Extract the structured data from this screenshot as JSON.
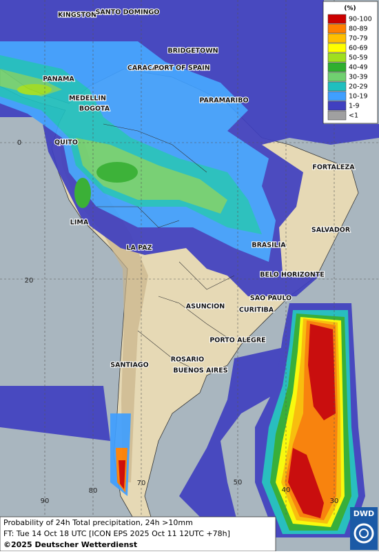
{
  "map": {
    "cities": [
      "KINGSTON",
      "SANTO DOMINGO",
      "BRIDGETOWN",
      "CARACAS",
      "PORT OF SPAIN",
      "PANAMA",
      "MEDELLIN",
      "BOGOTA",
      "PARAMARIBO",
      "QUITO",
      "FORTALEZA",
      "LIMA",
      "SALVADOR",
      "LA PAZ",
      "BRASILIA",
      "BELO HORIZONTE",
      "SAO PAULO",
      "ASUNCION",
      "CURITIBA",
      "PORTO ALEGRE",
      "ROSARIO",
      "SANTIAGO",
      "BUENOS AIRES"
    ],
    "latitude_labels": [
      "0",
      "20"
    ],
    "longitude_labels": [
      "90",
      "80",
      "70",
      "50",
      "40",
      "30"
    ]
  },
  "legend": {
    "unit": "(%)",
    "items": [
      {
        "label": "90-100",
        "color": "#cc0000"
      },
      {
        "label": "80-89",
        "color": "#ff7f00"
      },
      {
        "label": "70-79",
        "color": "#ffbf00"
      },
      {
        "label": "60-69",
        "color": "#ffff00"
      },
      {
        "label": "50-59",
        "color": "#9fdf1f"
      },
      {
        "label": "40-49",
        "color": "#2faf2f"
      },
      {
        "label": "30-39",
        "color": "#70d070"
      },
      {
        "label": "20-29",
        "color": "#1fbfbf"
      },
      {
        "label": "10-19",
        "color": "#3f9fff"
      },
      {
        "label": "1-9",
        "color": "#4040c0"
      },
      {
        "label": "<1",
        "color": "#a0a0a0"
      }
    ]
  },
  "footer": {
    "line1": "Probability of 24h Total precipitation, 24h >10mm",
    "line2": "FT: Tue 14 Oct 18 UTC [ICON EPS 2025 Oct 11 12UTC +78h]",
    "copyright": "©2025 Deutscher Wetterdienst",
    "logo": "DWD"
  }
}
